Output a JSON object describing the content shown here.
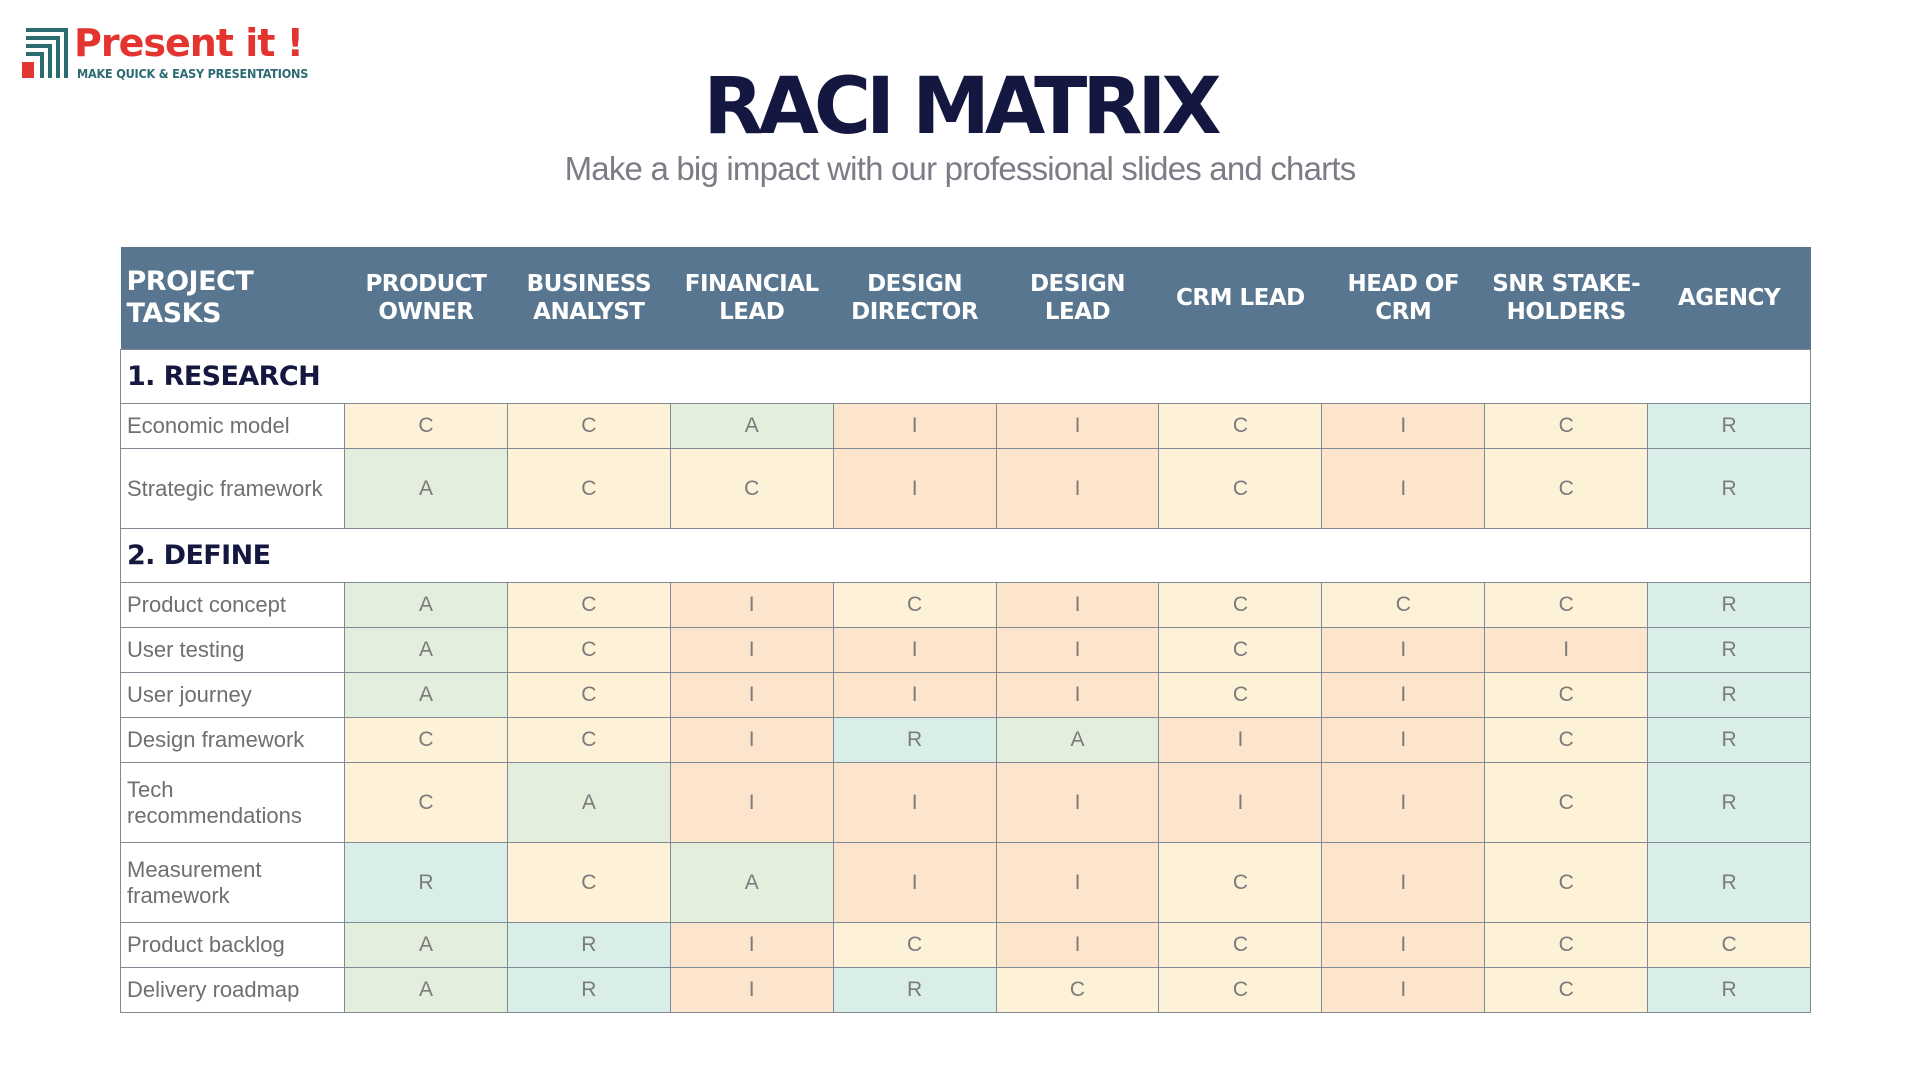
{
  "logo": {
    "name": "Present it !",
    "tagline": "MAKE QUICK & EASY PRESENTATIONS"
  },
  "title": "RACI MATRIX",
  "subtitle": "Make a big impact with our professional slides and charts",
  "colors": {
    "header_bg": "#587690",
    "title": "#14173f",
    "R": "#d9eee8",
    "A": "#e4eedd",
    "C": "#fdf1d8",
    "I": "#fde4cc"
  },
  "table": {
    "task_header": "PROJECT TASKS",
    "roles": [
      "PRODUCT OWNER",
      "BUSINESS ANALYST",
      "FINANCIAL LEAD",
      "DESIGN DIRECTOR",
      "DESIGN LEAD",
      "CRM LEAD",
      "HEAD OF CRM",
      "SNR STAKE-HOLDERS",
      "AGENCY"
    ],
    "sections": [
      {
        "title": "1. RESEARCH",
        "rows": [
          {
            "task": "Economic model",
            "lines": 1,
            "values": [
              "C",
              "C",
              "A",
              "I",
              "I",
              "C",
              "I",
              "C",
              "R"
            ]
          },
          {
            "task": "Strategic framework",
            "lines": 2,
            "values": [
              "A",
              "C",
              "C",
              "I",
              "I",
              "C",
              "I",
              "C",
              "R"
            ]
          }
        ]
      },
      {
        "title": "2. DEFINE",
        "rows": [
          {
            "task": "Product concept",
            "lines": 1,
            "values": [
              "A",
              "C",
              "I",
              "C",
              "I",
              "C",
              "C",
              "C",
              "R"
            ]
          },
          {
            "task": "User testing",
            "lines": 1,
            "values": [
              "A",
              "C",
              "I",
              "I",
              "I",
              "C",
              "I",
              "I",
              "R"
            ]
          },
          {
            "task": "User journey",
            "lines": 1,
            "values": [
              "A",
              "C",
              "I",
              "I",
              "I",
              "C",
              "I",
              "C",
              "R"
            ]
          },
          {
            "task": "Design framework",
            "lines": 1,
            "values": [
              "C",
              "C",
              "I",
              "R",
              "A",
              "I",
              "I",
              "C",
              "R"
            ]
          },
          {
            "task": "Tech recommendations",
            "lines": 2,
            "values": [
              "C",
              "A",
              "I",
              "I",
              "I",
              "I",
              "I",
              "C",
              "R"
            ]
          },
          {
            "task": "Measurement framework",
            "lines": 2,
            "values": [
              "R",
              "C",
              "A",
              "I",
              "I",
              "C",
              "I",
              "C",
              "R"
            ]
          },
          {
            "task": "Product backlog",
            "lines": 1,
            "values": [
              "A",
              "R",
              "I",
              "C",
              "I",
              "C",
              "I",
              "C",
              "C"
            ]
          },
          {
            "task": "Delivery roadmap",
            "lines": 1,
            "values": [
              "A",
              "R",
              "I",
              "R",
              "C",
              "C",
              "I",
              "C",
              "R"
            ]
          }
        ]
      }
    ]
  }
}
